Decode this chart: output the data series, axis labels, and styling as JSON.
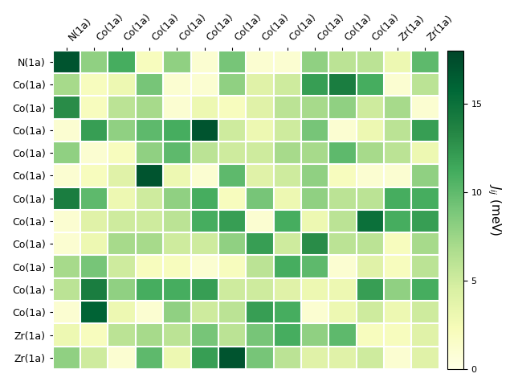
{
  "labels": [
    "N(1a)",
    "Co(1a)",
    "Co(1a)",
    "Co(1a)",
    "Co(1a)",
    "Co(1a)",
    "Co(1a)",
    "Co(1a)",
    "Co(1a)",
    "Co(1a)",
    "Co(1a)",
    "Co(1a)",
    "Zr(1a)",
    "Zr(1a)"
  ],
  "matrix": [
    [
      17,
      8,
      11,
      2,
      8,
      1,
      9,
      1,
      1,
      8,
      6,
      6,
      3,
      10
    ],
    [
      7,
      2,
      3,
      9,
      1,
      1,
      8,
      4,
      5,
      12,
      14,
      11,
      1,
      6
    ],
    [
      13,
      2,
      6,
      7,
      1,
      3,
      2,
      4,
      6,
      7,
      8,
      5,
      7,
      1
    ],
    [
      1,
      12,
      8,
      10,
      11,
      17,
      5,
      3,
      5,
      9,
      1,
      3,
      6,
      12
    ],
    [
      8,
      1,
      2,
      8,
      10,
      6,
      5,
      5,
      7,
      7,
      10,
      7,
      6,
      3
    ],
    [
      1,
      2,
      4,
      17,
      3,
      1,
      10,
      4,
      5,
      8,
      2,
      1,
      1,
      8
    ],
    [
      14,
      10,
      3,
      5,
      8,
      11,
      2,
      9,
      3,
      8,
      6,
      6,
      11,
      11
    ],
    [
      1,
      4,
      5,
      5,
      6,
      11,
      12,
      1,
      11,
      3,
      6,
      15,
      11,
      12
    ],
    [
      1,
      3,
      7,
      7,
      5,
      5,
      8,
      12,
      5,
      13,
      6,
      6,
      2,
      7
    ],
    [
      7,
      9,
      5,
      2,
      2,
      1,
      2,
      6,
      11,
      10,
      1,
      4,
      2,
      6
    ],
    [
      6,
      14,
      8,
      11,
      11,
      12,
      5,
      5,
      4,
      3,
      3,
      12,
      8,
      11
    ],
    [
      1,
      16,
      3,
      1,
      8,
      5,
      6,
      12,
      11,
      1,
      3,
      5,
      3,
      5
    ],
    [
      3,
      2,
      6,
      7,
      6,
      9,
      6,
      9,
      11,
      8,
      10,
      2,
      2,
      4
    ],
    [
      8,
      5,
      1,
      10,
      3,
      12,
      17,
      9,
      6,
      4,
      4,
      5,
      1,
      4
    ]
  ],
  "vmin": 0,
  "vmax": 18,
  "cmap": "YlGn",
  "colorbar_label": "$J_{ij}$ (meV)",
  "colorbar_ticks": [
    0,
    5,
    10,
    15
  ],
  "figsize": [
    6.4,
    4.8
  ],
  "dpi": 100,
  "label_fontsize": 9,
  "cbar_fontsize": 11
}
